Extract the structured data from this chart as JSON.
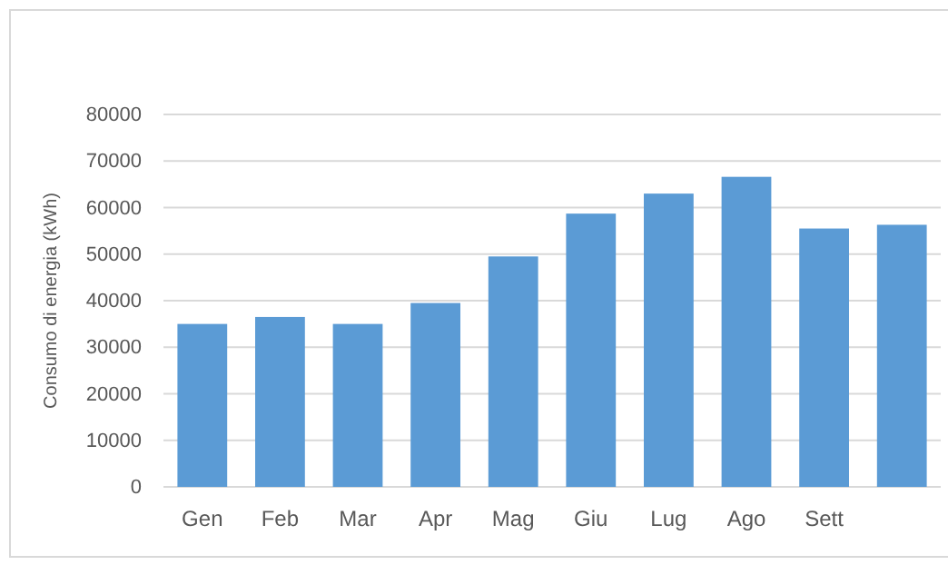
{
  "chart_data": {
    "type": "bar",
    "ylabel": "Consumo di energia (kWh)",
    "categories": [
      "Gen",
      "Feb",
      "Mar",
      "Apr",
      "Mag",
      "Giu",
      "Lug",
      "Ago",
      "Sett",
      null
    ],
    "values": [
      35000,
      36500,
      35000,
      39500,
      49500,
      58700,
      63000,
      66600,
      55500,
      56300
    ],
    "color": "#5b9bd5",
    "ylim": [
      0,
      80000
    ],
    "yticks": [
      0,
      10000,
      20000,
      30000,
      40000,
      50000,
      60000,
      70000,
      80000
    ],
    "grid": "y"
  }
}
